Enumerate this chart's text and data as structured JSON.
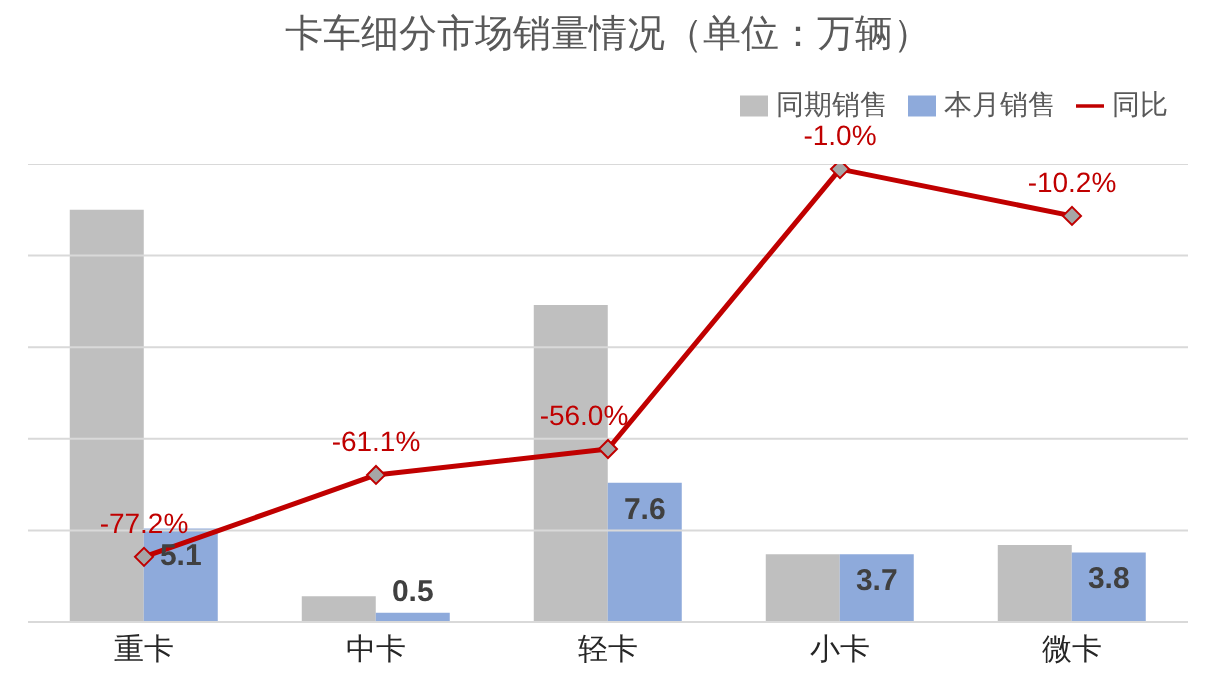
{
  "chart_data": {
    "type": "bar",
    "title": "卡车细分市场销量情况（单位：万辆）",
    "categories": [
      "重卡",
      "中卡",
      "轻卡",
      "小卡",
      "微卡"
    ],
    "series": [
      {
        "name": "同期销售",
        "color": "#bfbfbf",
        "values": [
          22.5,
          1.4,
          17.3,
          3.7,
          4.2
        ]
      },
      {
        "name": "本月销售",
        "color": "#8eaadb",
        "values": [
          5.1,
          0.5,
          7.6,
          3.7,
          3.8
        ],
        "value_labels": [
          "5.1",
          "0.5",
          "7.6",
          "3.7",
          "3.8"
        ]
      },
      {
        "name": "同比",
        "type": "line",
        "axis": "y2",
        "color": "#c00000",
        "marker": "diamond",
        "values": [
          -77.2,
          -61.1,
          -56.0,
          -1.0,
          -10.2
        ],
        "value_labels": [
          "-77.2%",
          "-61.1%",
          "-56.0%",
          "-1.0%",
          "-10.2%"
        ]
      }
    ],
    "ylim": [
      0,
      25
    ],
    "yticks": [
      {
        "value": 0,
        "label": null
      },
      {
        "value": 5,
        "label": null
      },
      {
        "value": 10,
        "label": null
      },
      {
        "value": 15,
        "label": null
      },
      {
        "value": 20,
        "label": null
      },
      {
        "value": 25,
        "label": null
      }
    ],
    "y2lim": [
      -90,
      0
    ],
    "tick_labels": "x",
    "grid": "y",
    "legend": "top right"
  }
}
